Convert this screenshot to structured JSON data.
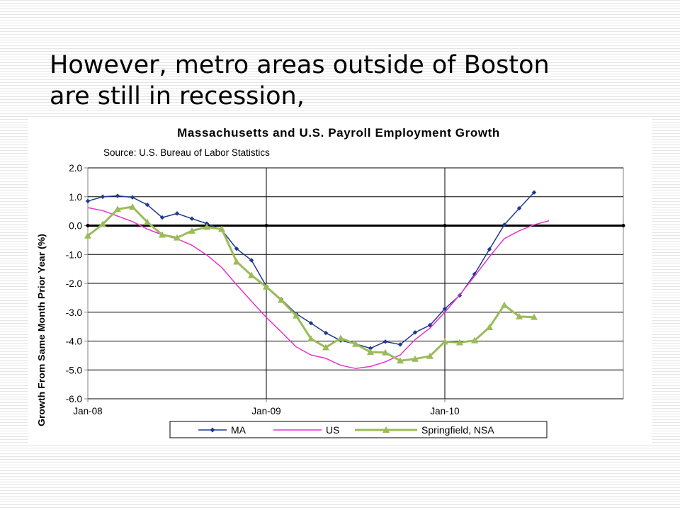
{
  "slide": {
    "title_line1": "However, metro areas outside of Boston",
    "title_line2": "are still in recession,"
  },
  "colors": {
    "MA": "#1f3a8a",
    "US": "#e633cc",
    "Springfield": "#9bbb59",
    "grid": "#000000"
  },
  "chart_data": {
    "type": "line",
    "title": "Massachusetts and U.S. Payroll Employment Growth",
    "subtitle": "Source: U.S. Bureau of Labor Statistics",
    "ylabel": "Growth From Same Month Prior Year (%)",
    "xlabel": "",
    "ylim": [
      -6.0,
      2.0
    ],
    "yticks": [
      "2.0",
      "1.0",
      "0.0",
      "-1.0",
      "-2.0",
      "-3.0",
      "-4.0",
      "-5.0",
      "-6.0"
    ],
    "xticks": [
      "Jan-08",
      "Jan-09",
      "Jan-10"
    ],
    "x_start": "Jan-08",
    "x_months_span": 36,
    "grid": true,
    "legend_position": "bottom",
    "series": [
      {
        "name": "MA",
        "marker": "diamond",
        "values": [
          0.85,
          1.0,
          1.03,
          0.98,
          0.72,
          0.28,
          0.42,
          0.24,
          0.07,
          -0.15,
          -0.8,
          -1.2,
          -2.1,
          -2.55,
          -3.05,
          -3.38,
          -3.72,
          -3.98,
          -4.1,
          -4.25,
          -4.02,
          -4.12,
          -3.7,
          -3.45,
          -2.88,
          -2.42,
          -1.68,
          -0.82,
          0.03,
          0.6,
          1.15
        ]
      },
      {
        "name": "US",
        "marker": "none",
        "values": [
          0.62,
          0.52,
          0.33,
          0.14,
          -0.12,
          -0.32,
          -0.46,
          -0.68,
          -1.02,
          -1.45,
          -2.05,
          -2.62,
          -3.18,
          -3.68,
          -4.2,
          -4.48,
          -4.6,
          -4.84,
          -4.95,
          -4.88,
          -4.72,
          -4.48,
          -3.95,
          -3.55,
          -3.0,
          -2.4,
          -1.75,
          -1.08,
          -0.45,
          -0.18,
          0.03,
          0.17
        ]
      },
      {
        "name": "Springfield, NSA",
        "marker": "triangle",
        "values": [
          -0.35,
          0.05,
          0.57,
          0.65,
          0.12,
          -0.32,
          -0.42,
          -0.18,
          -0.05,
          -0.12,
          -1.25,
          -1.72,
          -2.12,
          -2.58,
          -3.12,
          -3.92,
          -4.22,
          -3.9,
          -4.1,
          -4.38,
          -4.4,
          -4.68,
          -4.62,
          -4.52,
          -4.02,
          -4.05,
          -3.98,
          -3.52,
          -2.75,
          -3.15,
          -3.17
        ]
      }
    ]
  }
}
